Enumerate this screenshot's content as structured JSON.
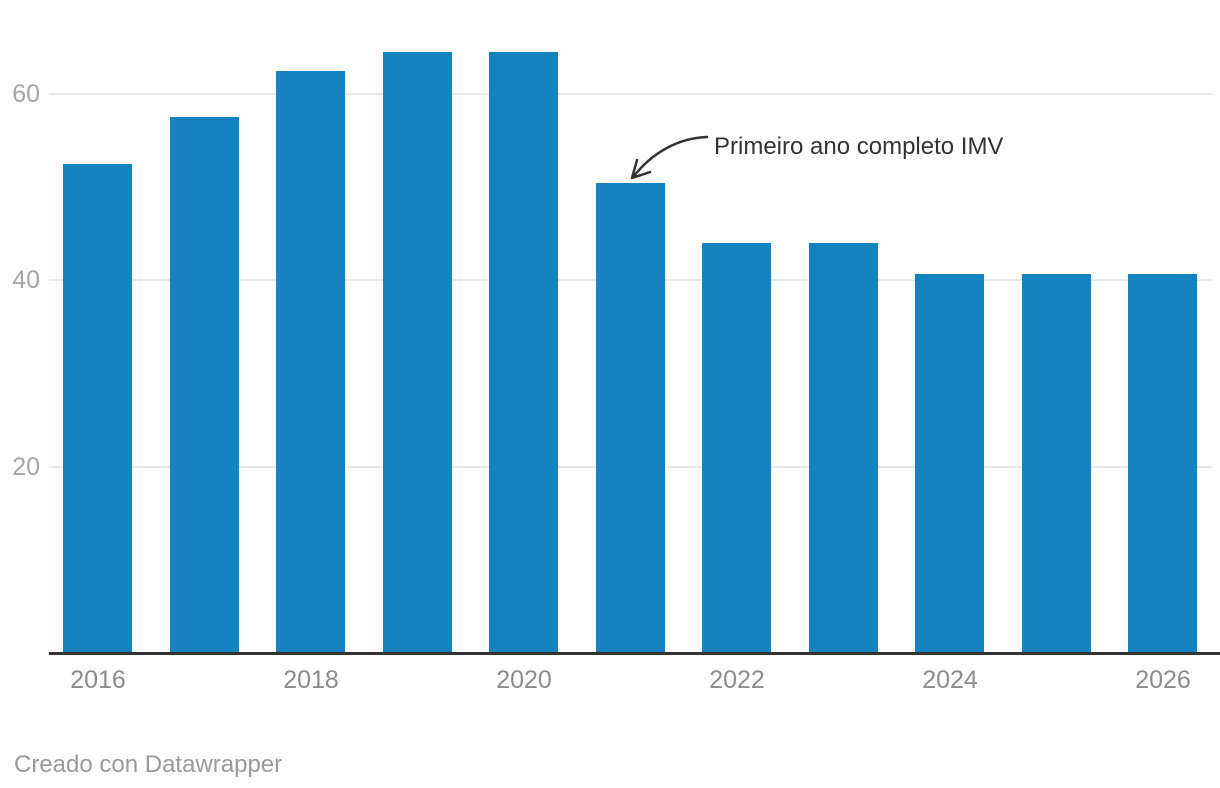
{
  "chart_data": {
    "type": "bar",
    "title": "",
    "categories": [
      "2016",
      "2017",
      "2018",
      "2019",
      "2020",
      "2021",
      "2022",
      "2023",
      "2024",
      "2025",
      "2026"
    ],
    "values": [
      52.5,
      57.5,
      62.5,
      64.5,
      64.5,
      50.5,
      44,
      44,
      40.7,
      40.7,
      40.7
    ],
    "xlabel": "",
    "ylabel": "",
    "ylim": [
      0,
      70
    ],
    "y_ticks": [
      "20",
      "40",
      "60"
    ],
    "x_tick_labels": [
      "2016",
      "2018",
      "2020",
      "2022",
      "2024",
      "2026"
    ],
    "grid": "horizontal",
    "legend": "none",
    "annotation": {
      "text": "Primeiro ano completo IMV",
      "target_category": "2021",
      "target_value": 50.5
    }
  },
  "footer": {
    "credit": "Creado con Datawrapper"
  },
  "colors": {
    "bar": "#1583c0",
    "axis_line": "#333333",
    "gridline": "#e8e8e8",
    "y_tick_text": "#a5a5a5",
    "x_tick_text": "#8c8c8c",
    "annotation_text": "#333333",
    "footer_text": "#9a9a9a"
  }
}
